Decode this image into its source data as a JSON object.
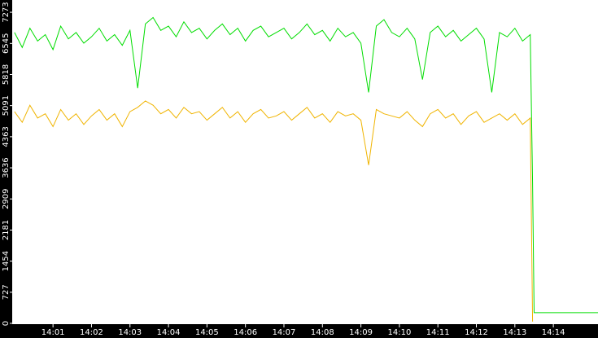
{
  "chart_data": {
    "type": "line",
    "x": [
      0,
      0.2,
      0.4,
      0.6,
      0.8,
      1,
      1.2,
      1.4,
      1.6,
      1.8,
      2,
      2.2,
      2.4,
      2.6,
      2.8,
      3,
      3.2,
      3.4,
      3.6,
      3.8,
      4,
      4.2,
      4.4,
      4.6,
      4.8,
      5,
      5.2,
      5.4,
      5.6,
      5.8,
      6,
      6.2,
      6.4,
      6.6,
      6.8,
      7,
      7.2,
      7.4,
      7.6,
      7.8,
      8,
      8.2,
      8.4,
      8.6,
      8.8,
      9,
      9.2,
      9.4,
      9.6,
      9.8,
      10,
      10.2,
      10.4,
      10.6,
      10.8,
      11,
      11.2,
      11.4,
      11.6,
      11.8,
      12,
      12.2,
      12.4,
      12.6,
      12.8,
      13,
      13.2,
      13.4,
      13.46,
      13.5,
      15.16
    ],
    "series": [
      {
        "color": "#00dd00",
        "values": [
          6800,
          6450,
          6900,
          6600,
          6750,
          6400,
          6950,
          6650,
          6800,
          6550,
          6700,
          6900,
          6600,
          6750,
          6500,
          6850,
          5500,
          7000,
          7150,
          6850,
          6950,
          6700,
          7050,
          6800,
          6900,
          6650,
          6850,
          7000,
          6750,
          6900,
          6600,
          6850,
          6950,
          6700,
          6800,
          6900,
          6650,
          6800,
          7000,
          6750,
          6850,
          6600,
          6900,
          6700,
          6800,
          6550,
          5400,
          6950,
          7100,
          6800,
          6700,
          6900,
          6650,
          5700,
          6800,
          6950,
          6700,
          6850,
          6600,
          6750,
          6900,
          6650,
          5400,
          6800,
          6700,
          6900,
          6600,
          6750,
          3300,
          250,
          250
        ]
      },
      {
        "color": "#f0b400",
        "values": [
          4950,
          4700,
          5100,
          4800,
          4900,
          4600,
          5000,
          4750,
          4900,
          4650,
          4850,
          5000,
          4750,
          4900,
          4600,
          4950,
          5050,
          5200,
          5100,
          4900,
          5000,
          4800,
          5050,
          4900,
          4950,
          4750,
          4900,
          5050,
          4800,
          4950,
          4700,
          4900,
          5000,
          4800,
          4850,
          4950,
          4750,
          4900,
          5050,
          4800,
          4900,
          4700,
          4950,
          4850,
          4900,
          4750,
          3700,
          5000,
          4900,
          4850,
          4800,
          4950,
          4750,
          4600,
          4900,
          5000,
          4800,
          4900,
          4650,
          4850,
          4950,
          4700,
          4800,
          4900,
          4750,
          4900,
          4650,
          4800,
          40,
          null,
          null
        ]
      }
    ],
    "xlim": [
      -0.06,
      15.16
    ],
    "xticks": [
      {
        "value": 1,
        "label": "14:01"
      },
      {
        "value": 2,
        "label": "14:02"
      },
      {
        "value": 3,
        "label": "14:03"
      },
      {
        "value": 4,
        "label": "14:04"
      },
      {
        "value": 5,
        "label": "14:05"
      },
      {
        "value": 6,
        "label": "14:06"
      },
      {
        "value": 7,
        "label": "14:07"
      },
      {
        "value": 8,
        "label": "14:08"
      },
      {
        "value": 9,
        "label": "14:09"
      },
      {
        "value": 10,
        "label": "14:10"
      },
      {
        "value": 11,
        "label": "14:11"
      },
      {
        "value": 12,
        "label": "14:12"
      },
      {
        "value": 13,
        "label": "14:13"
      },
      {
        "value": 14,
        "label": "14:14"
      }
    ],
    "ylim": [
      0,
      7560
    ],
    "yticks": [
      0,
      727,
      1454,
      2181,
      2909,
      3636,
      4363,
      5091,
      5818,
      6545,
      7273
    ]
  }
}
